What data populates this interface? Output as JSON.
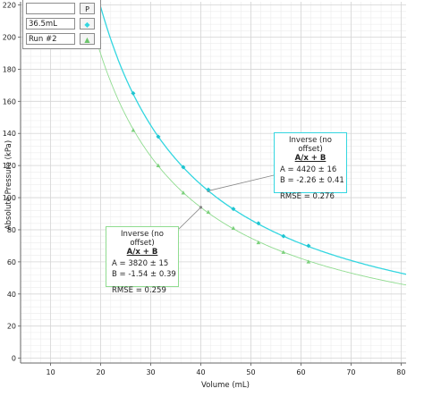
{
  "chart_data": {
    "type": "scatter",
    "xlabel": "Volume (mL)",
    "ylabel": "Absolute Pressure (kPa)",
    "xlim": [
      4,
      81
    ],
    "ylim": [
      -3,
      222
    ],
    "xticks": [
      10,
      20,
      30,
      40,
      50,
      60,
      70,
      80
    ],
    "yticks": [
      0,
      20,
      40,
      60,
      80,
      100,
      120,
      140,
      160,
      180,
      200,
      220
    ],
    "grid": true,
    "legend_position": "top-left",
    "series": [
      {
        "name": "36.5mL",
        "color": "#33d6e0",
        "marker": "diamond",
        "x": [
          26.5,
          31.5,
          36.5,
          41.5,
          46.5,
          51.5,
          56.5,
          61.5
        ],
        "y": [
          165,
          138,
          119,
          105,
          93,
          84,
          76,
          70
        ],
        "fit": {
          "model": "A/x + B",
          "A": 4420,
          "B": -2.26
        }
      },
      {
        "name": "Run #2",
        "color": "#90dc90",
        "marker": "triangle",
        "x": [
          26.5,
          31.5,
          36.5,
          41.5,
          46.5,
          51.5,
          56.5,
          61.5
        ],
        "y": [
          142,
          120,
          103,
          91,
          81,
          72,
          66,
          60
        ],
        "fit": {
          "model": "A/x + B",
          "A": 3820,
          "B": -1.54
        }
      }
    ],
    "annotations": [
      {
        "title": "Inverse (no offset)",
        "equation": "A/x + B",
        "a_line": "A = 4420 ± 16",
        "b_line": "B = -2.26 ± 0.41",
        "rmse_line": "RMSE = 0.276",
        "border_color": "#33d6e0"
      },
      {
        "title": "Inverse (no offset)",
        "equation": "A/x + B",
        "a_line": "A = 3820 ± 15",
        "b_line": "B = -1.54 ± 0.39",
        "rmse_line": "RMSE = 0.259",
        "border_color": "#90dc90"
      }
    ],
    "legend": {
      "header_marker": "P",
      "items": [
        {
          "label": "36.5mL",
          "marker_glyph": "◆"
        },
        {
          "label": "Run #2",
          "marker_glyph": "▲"
        }
      ]
    }
  }
}
